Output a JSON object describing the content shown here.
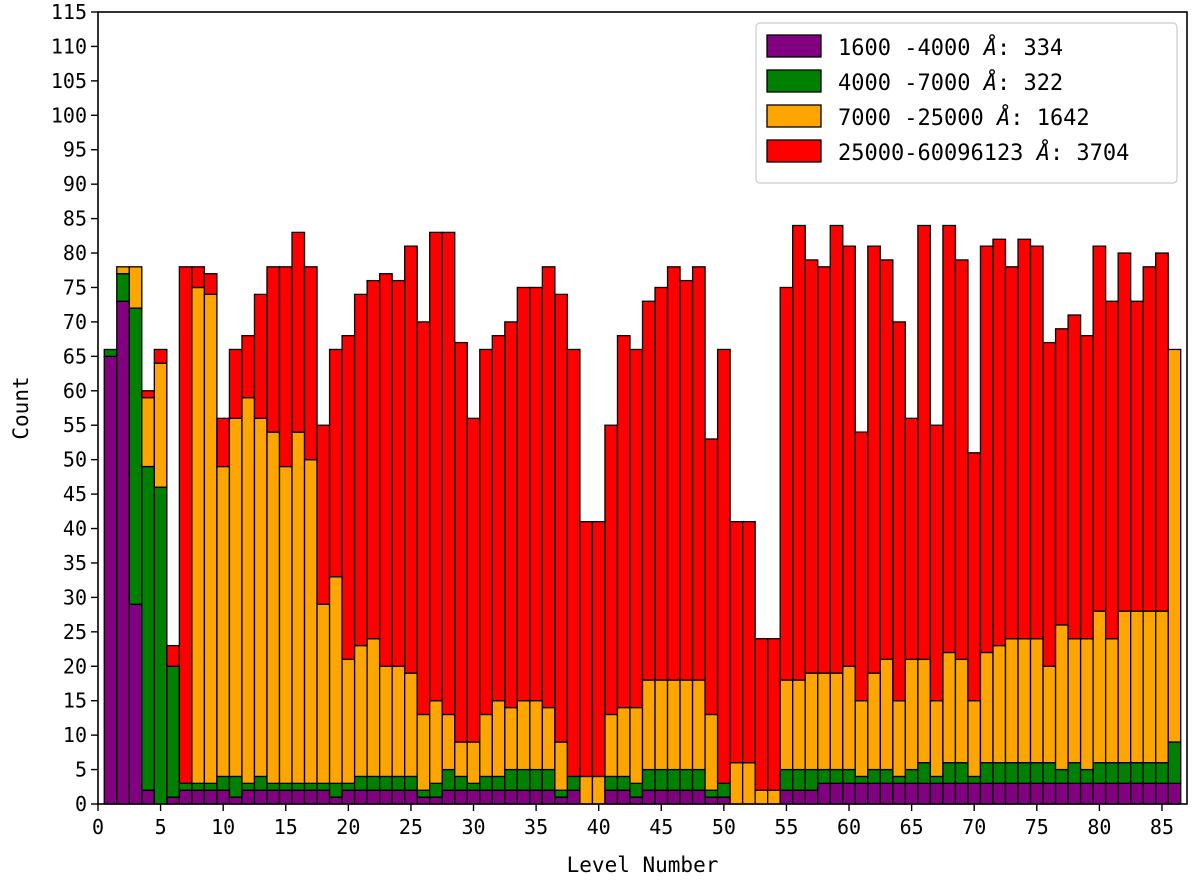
{
  "chart_data": {
    "type": "bar",
    "stacked": true,
    "title": "",
    "xlabel": "Level Number",
    "ylabel": "Count",
    "xlim": [
      0,
      87
    ],
    "ylim": [
      0,
      115
    ],
    "xticks": [
      0,
      5,
      10,
      15,
      20,
      25,
      30,
      35,
      40,
      45,
      50,
      55,
      60,
      65,
      70,
      75,
      80,
      85
    ],
    "yticks": [
      0,
      5,
      10,
      15,
      20,
      25,
      30,
      35,
      40,
      45,
      50,
      55,
      60,
      65,
      70,
      75,
      80,
      85,
      90,
      95,
      100,
      105,
      110,
      115
    ],
    "grid": false,
    "legend_position": "top-right",
    "x": [
      1,
      2,
      3,
      4,
      5,
      6,
      7,
      8,
      9,
      10,
      11,
      12,
      13,
      14,
      15,
      16,
      17,
      18,
      19,
      20,
      21,
      22,
      23,
      24,
      25,
      26,
      27,
      28,
      29,
      30,
      31,
      32,
      33,
      34,
      35,
      36,
      37,
      38,
      39,
      40,
      41,
      42,
      43,
      44,
      45,
      46,
      47,
      48,
      49,
      50,
      51,
      52,
      53,
      54,
      55,
      56,
      57,
      58,
      59,
      60,
      61,
      62,
      63,
      64,
      65,
      66,
      67,
      68,
      69,
      70,
      71,
      72,
      73,
      74,
      75,
      76,
      77,
      78,
      79,
      80,
      81,
      82,
      83,
      84,
      85,
      86
    ],
    "series": [
      {
        "name": "1600 -4000 Å: 334",
        "legend_range": "1600 -4000",
        "legend_count": "334",
        "color": "#800080",
        "values": [
          65,
          73,
          29,
          2,
          0,
          1,
          2,
          2,
          2,
          2,
          1,
          2,
          2,
          2,
          2,
          2,
          2,
          2,
          1,
          2,
          2,
          2,
          2,
          2,
          2,
          1,
          1,
          2,
          2,
          2,
          2,
          2,
          2,
          2,
          2,
          2,
          1,
          2,
          0,
          0,
          2,
          2,
          1,
          2,
          2,
          2,
          2,
          2,
          1,
          1,
          0,
          0,
          0,
          0,
          2,
          2,
          2,
          3,
          3,
          3,
          3,
          3,
          3,
          3,
          3,
          3,
          3,
          3,
          3,
          3,
          3,
          3,
          3,
          3,
          3,
          3,
          3,
          3,
          3,
          3,
          3,
          3,
          3,
          3,
          3,
          3
        ]
      },
      {
        "name": "4000 -7000 Å: 322",
        "legend_range": "4000 -7000",
        "legend_count": "322",
        "color": "#008000",
        "values": [
          1,
          4,
          43,
          47,
          46,
          19,
          1,
          1,
          1,
          2,
          3,
          1,
          2,
          1,
          1,
          1,
          1,
          1,
          2,
          1,
          2,
          2,
          2,
          2,
          2,
          1,
          2,
          3,
          2,
          1,
          2,
          2,
          3,
          3,
          3,
          3,
          1,
          2,
          0,
          0,
          2,
          2,
          2,
          3,
          3,
          3,
          3,
          3,
          1,
          2,
          0,
          0,
          0,
          0,
          3,
          3,
          3,
          2,
          2,
          2,
          1,
          2,
          2,
          1,
          2,
          3,
          1,
          3,
          3,
          1,
          3,
          3,
          3,
          3,
          3,
          3,
          2,
          3,
          2,
          3,
          3,
          3,
          3,
          3,
          3,
          6
        ]
      },
      {
        "name": "7000 -25000 Å: 1642",
        "legend_range": "7000 -25000",
        "legend_count": "1642",
        "color": "#FFA500",
        "values": [
          0,
          1,
          6,
          10,
          18,
          0,
          0,
          72,
          71,
          45,
          52,
          56,
          52,
          51,
          46,
          51,
          47,
          26,
          30,
          18,
          19,
          20,
          16,
          16,
          15,
          11,
          12,
          8,
          5,
          6,
          9,
          11,
          9,
          10,
          10,
          9,
          7,
          0,
          4,
          4,
          9,
          10,
          11,
          13,
          13,
          13,
          13,
          13,
          11,
          0,
          6,
          6,
          2,
          2,
          13,
          13,
          14,
          14,
          14,
          15,
          11,
          14,
          16,
          11,
          16,
          15,
          11,
          16,
          15,
          11,
          16,
          17,
          18,
          18,
          18,
          14,
          21,
          18,
          19,
          22,
          18,
          22,
          22,
          22,
          22,
          57
        ]
      },
      {
        "name": "25000-60096123 Å: 3704",
        "legend_range": "25000-60096123",
        "legend_count": "3704",
        "color": "#FF0000",
        "values": [
          0,
          0,
          0,
          1,
          2,
          3,
          75,
          3,
          3,
          7,
          10,
          9,
          18,
          24,
          29,
          29,
          28,
          26,
          33,
          47,
          51,
          52,
          57,
          56,
          62,
          57,
          68,
          70,
          58,
          47,
          53,
          53,
          56,
          60,
          60,
          64,
          65,
          62,
          37,
          37,
          42,
          54,
          52,
          55,
          57,
          60,
          58,
          60,
          40,
          63,
          35,
          35,
          22,
          22,
          57,
          66,
          60,
          59,
          65,
          61,
          39,
          62,
          58,
          55,
          35,
          63,
          40,
          62,
          58,
          36,
          59,
          59,
          54,
          58,
          57,
          47,
          43,
          47,
          44,
          53,
          49,
          52,
          45,
          50,
          52,
          0
        ]
      }
    ]
  }
}
